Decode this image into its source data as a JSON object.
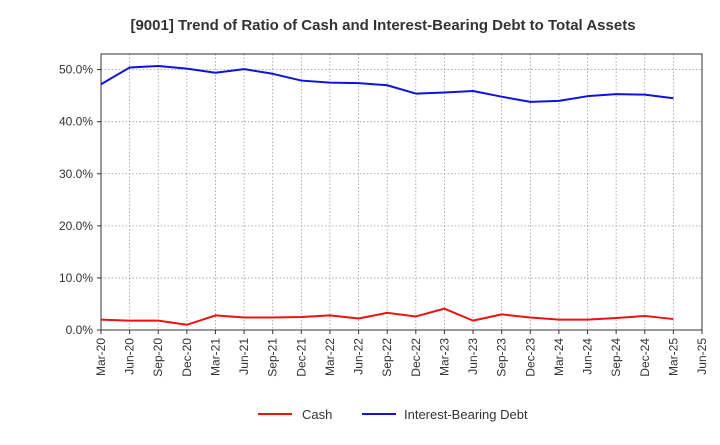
{
  "chart_data": {
    "type": "line",
    "title": "[9001]  Trend of Ratio of Cash and Interest-Bearing Debt to Total Assets",
    "xlabel": "",
    "ylabel": "",
    "ylim": [
      0,
      53
    ],
    "y_ticks": [
      0,
      10,
      20,
      30,
      40,
      50
    ],
    "y_tick_labels": [
      "0.0%",
      "10.0%",
      "20.0%",
      "30.0%",
      "40.0%",
      "50.0%"
    ],
    "x_tick_labels": [
      "Mar-20",
      "Jun-20",
      "Sep-20",
      "Dec-20",
      "Mar-21",
      "Jun-21",
      "Sep-21",
      "Dec-21",
      "Mar-22",
      "Jun-22",
      "Sep-22",
      "Dec-22",
      "Mar-23",
      "Jun-23",
      "Sep-23",
      "Dec-23",
      "Mar-24",
      "Jun-24",
      "Sep-24",
      "Dec-24",
      "Mar-25",
      "Jun-25"
    ],
    "categories": [
      "Mar-20",
      "Jun-20",
      "Sep-20",
      "Dec-20",
      "Mar-21",
      "Jun-21",
      "Sep-21",
      "Dec-21",
      "Mar-22",
      "Jun-22",
      "Sep-22",
      "Dec-22",
      "Mar-23",
      "Jun-23",
      "Sep-23",
      "Dec-23",
      "Mar-24",
      "Jun-24",
      "Sep-24",
      "Dec-24",
      "Mar-25"
    ],
    "grid": true,
    "legend_position": "bottom",
    "series": [
      {
        "name": "Cash",
        "color": "#ee1111",
        "values": [
          2.0,
          1.8,
          1.8,
          1.0,
          2.8,
          2.4,
          2.4,
          2.5,
          2.8,
          2.2,
          3.3,
          2.6,
          4.1,
          1.8,
          3.0,
          2.4,
          2.0,
          2.0,
          2.3,
          2.7,
          2.1
        ]
      },
      {
        "name": "Interest-Bearing Debt",
        "color": "#1111dd",
        "values": [
          47.2,
          50.4,
          50.7,
          50.2,
          49.4,
          50.1,
          49.2,
          47.9,
          47.5,
          47.4,
          47.0,
          45.4,
          45.6,
          45.9,
          44.8,
          43.8,
          44.0,
          44.9,
          45.3,
          45.2,
          44.5
        ]
      }
    ]
  }
}
